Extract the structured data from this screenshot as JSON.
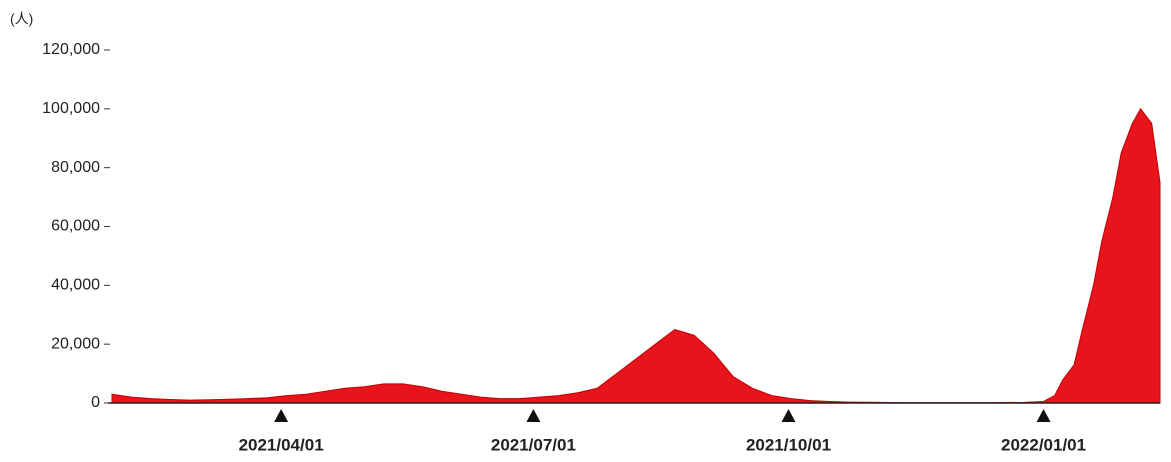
{
  "chart_data": {
    "type": "area",
    "y_unit": "(人)",
    "x": [
      "2021/01/30",
      "2021/02/06",
      "2021/02/13",
      "2021/02/20",
      "2021/02/27",
      "2021/03/06",
      "2021/03/13",
      "2021/03/20",
      "2021/03/27",
      "2021/04/03",
      "2021/04/10",
      "2021/04/17",
      "2021/04/24",
      "2021/05/01",
      "2021/05/08",
      "2021/05/15",
      "2021/05/22",
      "2021/05/29",
      "2021/06/05",
      "2021/06/12",
      "2021/06/19",
      "2021/06/26",
      "2021/07/03",
      "2021/07/10",
      "2021/07/17",
      "2021/07/24",
      "2021/07/31",
      "2021/08/07",
      "2021/08/14",
      "2021/08/21",
      "2021/08/28",
      "2021/09/04",
      "2021/09/11",
      "2021/09/18",
      "2021/09/25",
      "2021/10/02",
      "2021/10/09",
      "2021/10/16",
      "2021/10/23",
      "2021/10/30",
      "2021/11/13",
      "2021/11/27",
      "2021/12/11",
      "2021/12/25",
      "2022/01/01",
      "2022/01/05",
      "2022/01/08",
      "2022/01/12",
      "2022/01/15",
      "2022/01/19",
      "2022/01/22",
      "2022/01/26",
      "2022/01/29",
      "2022/02/02",
      "2022/02/05",
      "2022/02/09",
      "2022/02/12"
    ],
    "values": [
      3000,
      2000,
      1500,
      1200,
      1000,
      1100,
      1300,
      1500,
      1800,
      2500,
      3000,
      4000,
      5000,
      5500,
      6500,
      6500,
      5500,
      4000,
      3000,
      2000,
      1500,
      1500,
      2000,
      2500,
      3500,
      5000,
      10000,
      15000,
      20000,
      25000,
      23000,
      17000,
      9000,
      5000,
      2500,
      1500,
      800,
      500,
      300,
      250,
      150,
      150,
      150,
      200,
      500,
      2500,
      8000,
      13000,
      25000,
      40000,
      55000,
      70000,
      85000,
      95000,
      100000,
      95000,
      75000
    ],
    "color": "#e8141b",
    "xlim": [
      "2021/01/30",
      "2022/02/12"
    ],
    "xticks": [
      "2021/04/01",
      "2021/07/01",
      "2021/10/01",
      "2022/01/01"
    ],
    "ylim": [
      0,
      120000
    ],
    "yticks": [
      0,
      {
        "value": 20000,
        "label": "20,000"
      },
      {
        "value": 40000,
        "label": "40,000"
      },
      {
        "value": 60000,
        "label": "60,000"
      },
      {
        "value": 80000,
        "label": "80,000"
      },
      {
        "value": 100000,
        "label": "100,000"
      },
      {
        "value": 120000,
        "label": "120,000"
      }
    ]
  }
}
